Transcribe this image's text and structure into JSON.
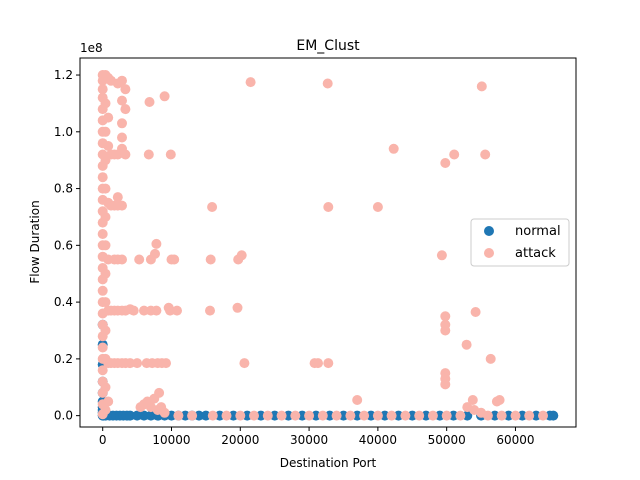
{
  "chart_data": {
    "type": "scatter",
    "title": "EM_Clust",
    "xlabel": "Destination Port",
    "ylabel": "Flow Duration",
    "y_offset_text": "1e8",
    "xlim": [
      -3300,
      68800
    ],
    "ylim": [
      -4000000,
      126000000
    ],
    "xticks": [
      0,
      10000,
      20000,
      30000,
      40000,
      50000,
      60000
    ],
    "xtick_labels": [
      "0",
      "10000",
      "20000",
      "30000",
      "40000",
      "50000",
      "60000"
    ],
    "yticks": [
      0,
      20000000,
      40000000,
      60000000,
      80000000,
      100000000,
      120000000
    ],
    "ytick_labels": [
      "0.0",
      "0.2",
      "0.4",
      "0.6",
      "0.8",
      "1.0",
      "1.2"
    ],
    "grid": false,
    "legend_position": "center-right",
    "series": [
      {
        "name": "normal",
        "color": "#1f77b4",
        "points": [
          [
            0,
            0
          ],
          [
            53,
            0
          ],
          [
            80,
            0
          ],
          [
            443,
            0
          ],
          [
            1000,
            0
          ],
          [
            1500,
            0
          ],
          [
            2000,
            0
          ],
          [
            2500,
            0
          ],
          [
            3000,
            0
          ],
          [
            3500,
            0
          ],
          [
            4000,
            0
          ],
          [
            5000,
            0
          ],
          [
            6000,
            0
          ],
          [
            7000,
            0
          ],
          [
            8000,
            0
          ],
          [
            8080,
            0
          ],
          [
            9000,
            0
          ],
          [
            10000,
            0
          ],
          [
            11000,
            0
          ],
          [
            12000,
            0
          ],
          [
            13000,
            0
          ],
          [
            14000,
            0
          ],
          [
            15000,
            0
          ],
          [
            17000,
            0
          ],
          [
            19000,
            0
          ],
          [
            21000,
            0
          ],
          [
            23000,
            0
          ],
          [
            25000,
            0
          ],
          [
            27000,
            0
          ],
          [
            29000,
            0
          ],
          [
            31000,
            0
          ],
          [
            33000,
            0
          ],
          [
            35000,
            0
          ],
          [
            37000,
            0
          ],
          [
            39000,
            0
          ],
          [
            41000,
            0
          ],
          [
            43000,
            0
          ],
          [
            45000,
            0
          ],
          [
            47000,
            0
          ],
          [
            49000,
            0
          ],
          [
            51000,
            0
          ],
          [
            53000,
            0
          ],
          [
            55000,
            0
          ],
          [
            57000,
            0
          ],
          [
            59000,
            0
          ],
          [
            61000,
            0
          ],
          [
            63000,
            0
          ],
          [
            65000,
            0
          ],
          [
            65500,
            0
          ],
          [
            0,
            1000000
          ],
          [
            0,
            2000000
          ],
          [
            0,
            3000000
          ],
          [
            0,
            5000000
          ],
          [
            0,
            8000000
          ],
          [
            0,
            12000000
          ],
          [
            0,
            18000000
          ],
          [
            0,
            25000000
          ],
          [
            0,
            32000000
          ]
        ]
      },
      {
        "name": "attack",
        "color": "#f9b4ab",
        "points": [
          [
            0,
            120000000
          ],
          [
            0,
            118000000
          ],
          [
            0,
            115000000
          ],
          [
            0,
            112000000
          ],
          [
            0,
            108000000
          ],
          [
            0,
            104000000
          ],
          [
            0,
            100000000
          ],
          [
            0,
            96000000
          ],
          [
            0,
            92000000
          ],
          [
            0,
            88000000
          ],
          [
            0,
            84000000
          ],
          [
            0,
            80000000
          ],
          [
            0,
            76000000
          ],
          [
            0,
            72000000
          ],
          [
            0,
            68000000
          ],
          [
            0,
            64000000
          ],
          [
            0,
            60000000
          ],
          [
            0,
            56000000
          ],
          [
            0,
            52000000
          ],
          [
            0,
            48000000
          ],
          [
            0,
            44000000
          ],
          [
            0,
            40000000
          ],
          [
            0,
            36000000
          ],
          [
            0,
            32000000
          ],
          [
            0,
            28000000
          ],
          [
            0,
            24000000
          ],
          [
            0,
            20000000
          ],
          [
            0,
            16000000
          ],
          [
            0,
            12000000
          ],
          [
            0,
            8000000
          ],
          [
            0,
            4000000
          ],
          [
            0,
            500000
          ],
          [
            400,
            120000000
          ],
          [
            400,
            110000000
          ],
          [
            400,
            100000000
          ],
          [
            400,
            90000000
          ],
          [
            400,
            80000000
          ],
          [
            400,
            70000000
          ],
          [
            400,
            60000000
          ],
          [
            400,
            50000000
          ],
          [
            400,
            40000000
          ],
          [
            400,
            30000000
          ],
          [
            400,
            20000000
          ],
          [
            400,
            10000000
          ],
          [
            400,
            2000000
          ],
          [
            800,
            119000000
          ],
          [
            800,
            105000000
          ],
          [
            800,
            95000000
          ],
          [
            800,
            75000000
          ],
          [
            800,
            55000000
          ],
          [
            800,
            37000000
          ],
          [
            800,
            18500000
          ],
          [
            800,
            5000000
          ],
          [
            1200,
            118000000
          ],
          [
            1200,
            92000000
          ],
          [
            1200,
            74000000
          ],
          [
            1200,
            37000000
          ],
          [
            1200,
            18500000
          ],
          [
            1700,
            92000000
          ],
          [
            1700,
            74000000
          ],
          [
            1700,
            55000000
          ],
          [
            1700,
            37000000
          ],
          [
            1700,
            18500000
          ],
          [
            2200,
            117000000
          ],
          [
            2200,
            92000000
          ],
          [
            2200,
            77000000
          ],
          [
            2200,
            74000000
          ],
          [
            2200,
            55000000
          ],
          [
            2200,
            37000000
          ],
          [
            2200,
            18500000
          ],
          [
            2800,
            118000000
          ],
          [
            2800,
            111000000
          ],
          [
            2800,
            103000000
          ],
          [
            2800,
            98000000
          ],
          [
            2800,
            94000000
          ],
          [
            2800,
            74000000
          ],
          [
            2800,
            55000000
          ],
          [
            2800,
            37000000
          ],
          [
            2800,
            18500000
          ],
          [
            3300,
            115000000
          ],
          [
            3300,
            108000000
          ],
          [
            3300,
            92000000
          ],
          [
            3300,
            37000000
          ],
          [
            3300,
            18500000
          ],
          [
            4000,
            37500000
          ],
          [
            4000,
            18500000
          ],
          [
            4500,
            37000000
          ],
          [
            5000,
            18500000
          ],
          [
            5300,
            55000000
          ],
          [
            6000,
            37000000
          ],
          [
            6400,
            18500000
          ],
          [
            6700,
            92000000
          ],
          [
            6800,
            110500000
          ],
          [
            7000,
            55000000
          ],
          [
            7000,
            37000000
          ],
          [
            7200,
            18500000
          ],
          [
            7600,
            57000000
          ],
          [
            7800,
            60500000
          ],
          [
            7800,
            37000000
          ],
          [
            8000,
            18500000
          ],
          [
            8200,
            8000000
          ],
          [
            8600,
            18500000
          ],
          [
            9000,
            112500000
          ],
          [
            9200,
            18500000
          ],
          [
            9600,
            38000000
          ],
          [
            9800,
            37000000
          ],
          [
            9900,
            92000000
          ],
          [
            10000,
            55000000
          ],
          [
            10400,
            55000000
          ],
          [
            10800,
            37000000
          ],
          [
            5500,
            3000000
          ],
          [
            6000,
            4000000
          ],
          [
            6500,
            5000000
          ],
          [
            7000,
            3000000
          ],
          [
            7500,
            6000000
          ],
          [
            8000,
            2000000
          ],
          [
            8500,
            3000000
          ],
          [
            9000,
            1000000
          ],
          [
            15600,
            37000000
          ],
          [
            15700,
            55000000
          ],
          [
            15900,
            73500000
          ],
          [
            19600,
            38000000
          ],
          [
            19700,
            55000000
          ],
          [
            20200,
            56500000
          ],
          [
            20600,
            18500000
          ],
          [
            21500,
            117500000
          ],
          [
            30800,
            18500000
          ],
          [
            31300,
            18500000
          ],
          [
            32700,
            117000000
          ],
          [
            32800,
            73500000
          ],
          [
            32800,
            18500000
          ],
          [
            37000,
            5500000
          ],
          [
            40000,
            73500000
          ],
          [
            42300,
            94000000
          ],
          [
            49300,
            56500000
          ],
          [
            49800,
            89000000
          ],
          [
            49800,
            35000000
          ],
          [
            49800,
            32000000
          ],
          [
            49800,
            30000000
          ],
          [
            49800,
            15000000
          ],
          [
            49800,
            13000000
          ],
          [
            49800,
            11000000
          ],
          [
            51100,
            92000000
          ],
          [
            52900,
            25000000
          ],
          [
            53800,
            5500000
          ],
          [
            54200,
            36500000
          ],
          [
            55100,
            116000000
          ],
          [
            55600,
            92000000
          ],
          [
            56400,
            20000000
          ],
          [
            57300,
            5000000
          ],
          [
            57700,
            5500000
          ],
          [
            11000,
            0
          ],
          [
            13000,
            0
          ],
          [
            16000,
            0
          ],
          [
            18000,
            0
          ],
          [
            20000,
            0
          ],
          [
            22000,
            0
          ],
          [
            24000,
            0
          ],
          [
            26000,
            0
          ],
          [
            28000,
            0
          ],
          [
            30000,
            0
          ],
          [
            32000,
            0
          ],
          [
            34000,
            0
          ],
          [
            36000,
            0
          ],
          [
            38000,
            0
          ],
          [
            40000,
            0
          ],
          [
            42000,
            0
          ],
          [
            44000,
            0
          ],
          [
            46000,
            0
          ],
          [
            48000,
            0
          ],
          [
            50000,
            0
          ],
          [
            52000,
            0
          ],
          [
            53000,
            3000000
          ],
          [
            54000,
            2000000
          ],
          [
            55000,
            1000000
          ],
          [
            56000,
            0
          ],
          [
            58000,
            0
          ],
          [
            60000,
            0
          ],
          [
            62000,
            0
          ],
          [
            64000,
            0
          ]
        ]
      }
    ]
  }
}
